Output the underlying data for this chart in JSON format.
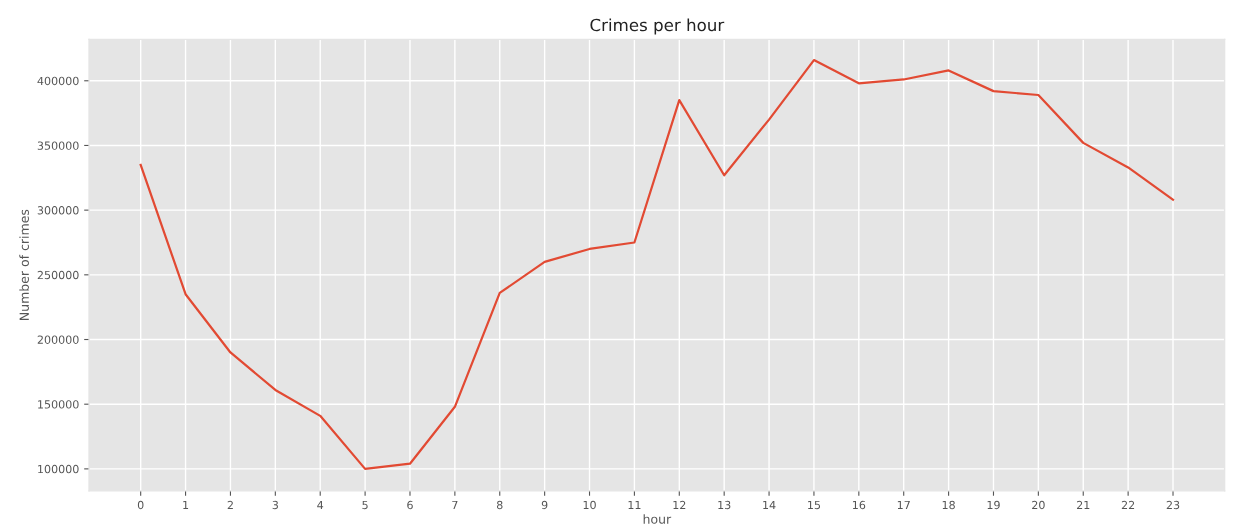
{
  "chart_data": {
    "type": "line",
    "title": "Crimes per hour",
    "xlabel": "hour",
    "ylabel": "Number of crimes",
    "x": [
      0,
      1,
      2,
      3,
      4,
      5,
      6,
      7,
      8,
      9,
      10,
      11,
      12,
      13,
      14,
      15,
      16,
      17,
      18,
      19,
      20,
      21,
      22,
      23
    ],
    "series": [
      {
        "color": "#e24a33",
        "values": [
          335000,
          235000,
          190000,
          161000,
          141000,
          100000,
          104000,
          148000,
          236000,
          260000,
          270000,
          275000,
          385000,
          327000,
          370000,
          416000,
          398000,
          401000,
          408000,
          392000,
          389000,
          352000,
          333000,
          308000
        ]
      }
    ],
    "xlim": [
      -1.15,
      24.15
    ],
    "xticks": [
      0,
      1,
      2,
      3,
      4,
      5,
      6,
      7,
      8,
      9,
      10,
      11,
      12,
      13,
      14,
      15,
      16,
      17,
      18,
      19,
      20,
      21,
      22,
      23
    ],
    "ylim": [
      83000,
      432000
    ],
    "yticks": [
      100000,
      150000,
      200000,
      250000,
      300000,
      350000,
      400000
    ],
    "grid": true,
    "marker": "none",
    "line_style": "solid"
  }
}
